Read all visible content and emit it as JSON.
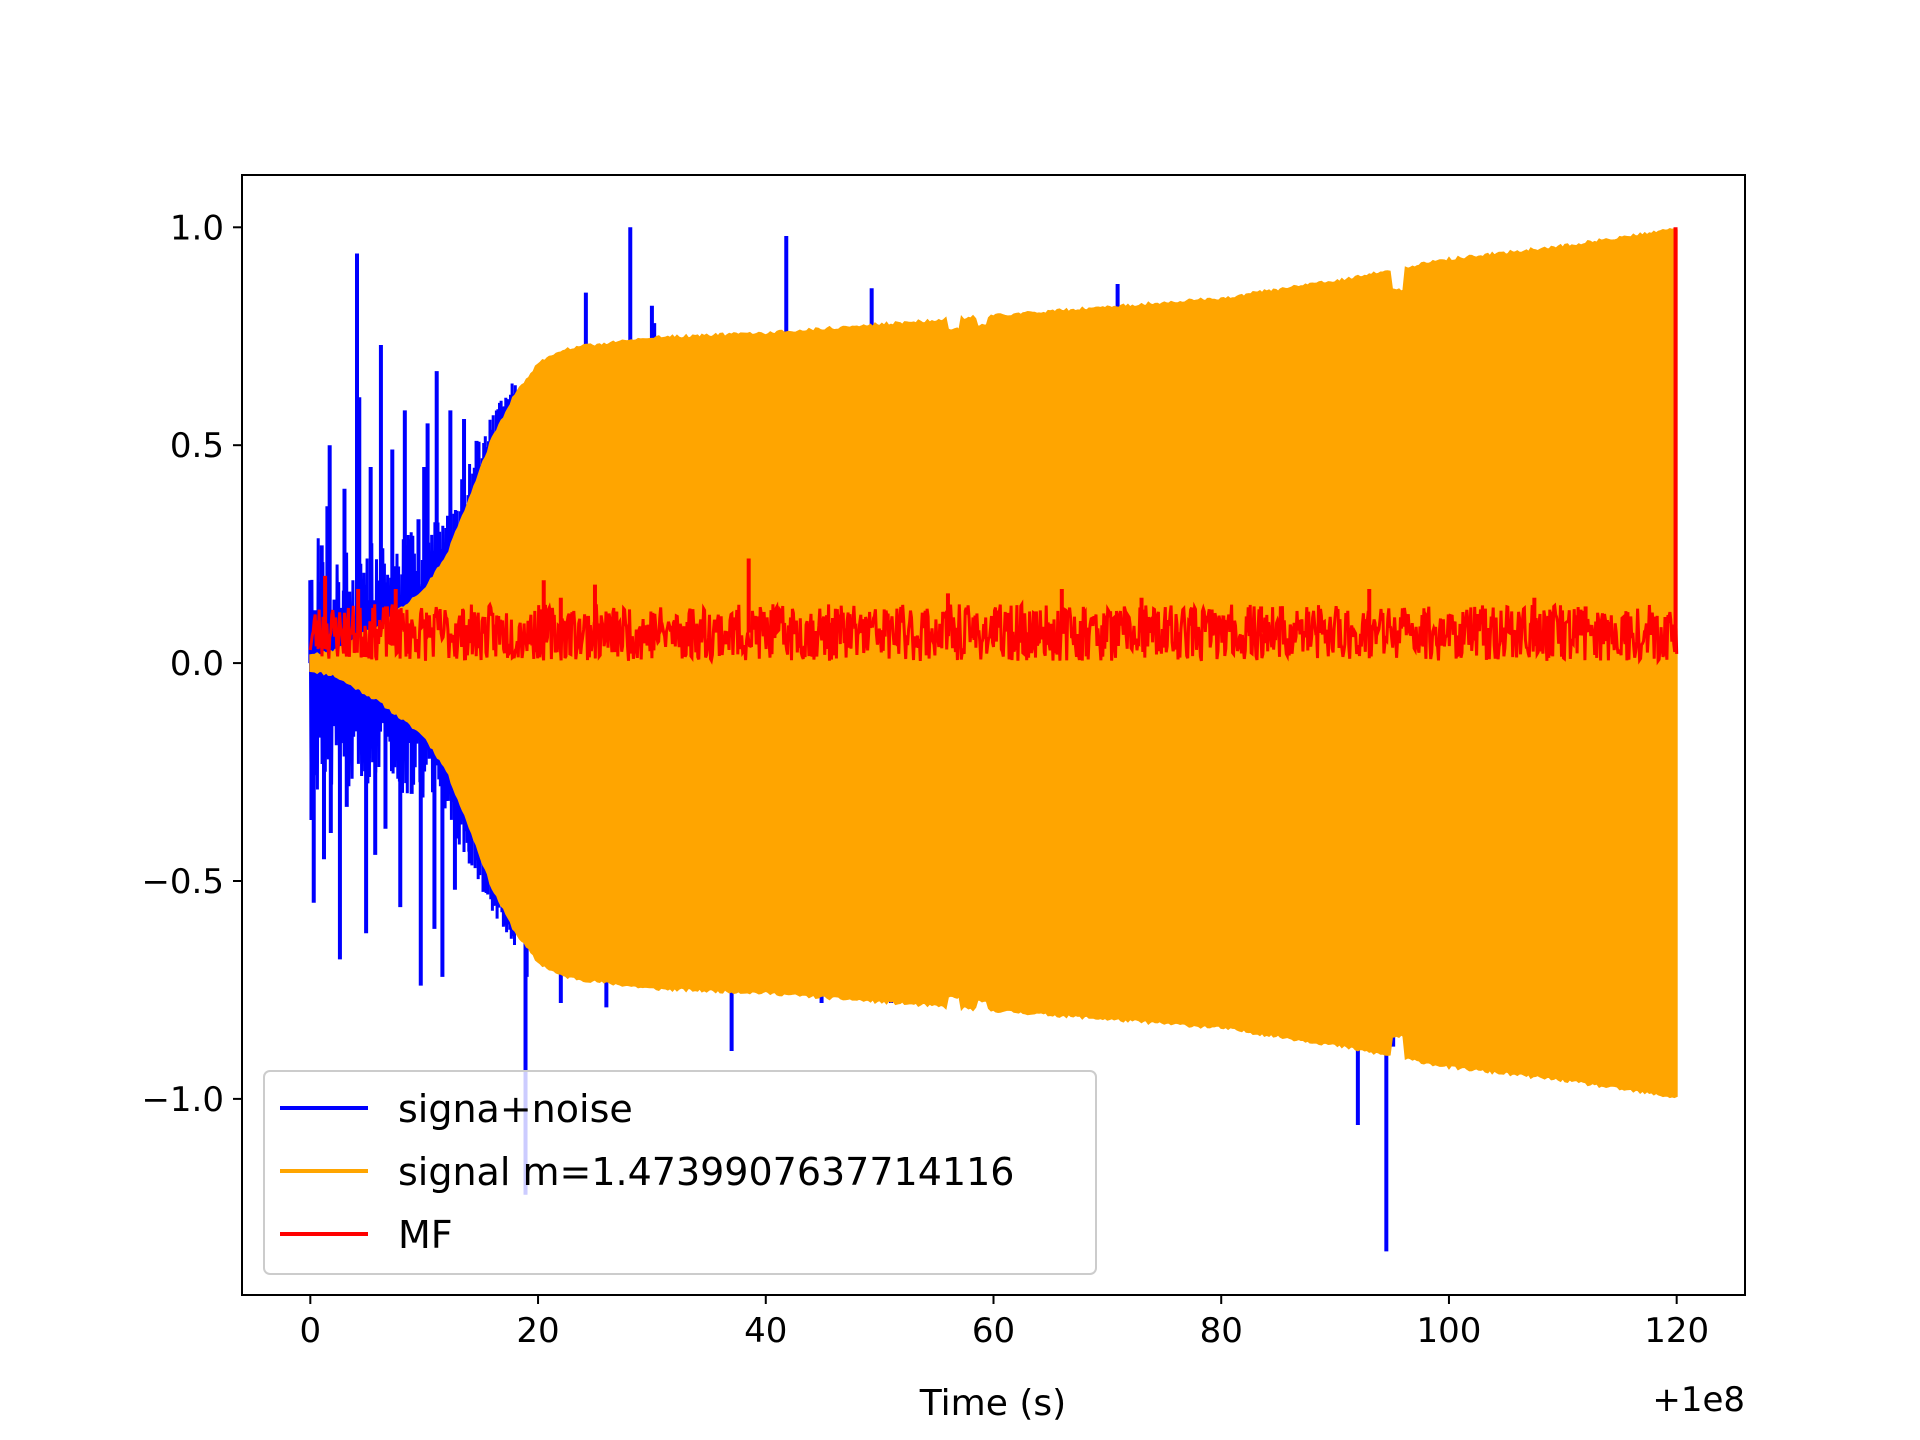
{
  "chart_data": {
    "type": "line",
    "title": "",
    "xlabel": "Time (s)",
    "ylabel": "",
    "x_offset_label": "+1e8",
    "xlim": [
      -6,
      126
    ],
    "ylim": [
      -1.45,
      1.12
    ],
    "x_ticks": [
      0,
      20,
      40,
      60,
      80,
      100,
      120
    ],
    "x_tick_labels": [
      "0",
      "20",
      "40",
      "60",
      "80",
      "100",
      "120"
    ],
    "y_ticks": [
      -1.0,
      -0.5,
      0.0,
      0.5,
      1.0
    ],
    "y_tick_labels": [
      "−1.0",
      "−0.5",
      "0.0",
      "0.5",
      "1.0"
    ],
    "grid": false,
    "legend_position": "lower-left",
    "series": [
      {
        "name": "signa+noise",
        "color": "#0000ff",
        "x_range": [
          0,
          120
        ],
        "spikes": [
          [
            0.0,
            0.19
          ],
          [
            0.1,
            -0.36
          ],
          [
            0.3,
            -0.55
          ],
          [
            1.0,
            0.27
          ],
          [
            1.2,
            -0.45
          ],
          [
            1.5,
            0.36
          ],
          [
            1.7,
            0.5
          ],
          [
            1.8,
            -0.39
          ],
          [
            2.6,
            -0.68
          ],
          [
            3.0,
            0.4
          ],
          [
            3.2,
            -0.33
          ],
          [
            4.1,
            0.94
          ],
          [
            4.3,
            0.61
          ],
          [
            4.9,
            -0.62
          ],
          [
            5.3,
            0.45
          ],
          [
            5.7,
            -0.44
          ],
          [
            6.2,
            0.73
          ],
          [
            6.6,
            -0.38
          ],
          [
            7.2,
            0.49
          ],
          [
            7.9,
            -0.56
          ],
          [
            8.3,
            0.58
          ],
          [
            8.9,
            -0.3
          ],
          [
            9.5,
            0.33
          ],
          [
            9.7,
            -0.74
          ],
          [
            10.0,
            0.45
          ],
          [
            10.3,
            0.55
          ],
          [
            10.9,
            -0.61
          ],
          [
            11.1,
            0.67
          ],
          [
            11.6,
            -0.72
          ],
          [
            12.3,
            0.58
          ],
          [
            12.7,
            -0.52
          ],
          [
            13.5,
            0.56
          ],
          [
            14.0,
            -0.46
          ],
          [
            14.6,
            0.51
          ],
          [
            16.0,
            0.49
          ],
          [
            18.9,
            -1.22
          ],
          [
            19.0,
            -0.72
          ],
          [
            20.0,
            -0.62
          ],
          [
            22.0,
            -0.78
          ],
          [
            24.2,
            0.85
          ],
          [
            26.0,
            -0.79
          ],
          [
            28.1,
            1.0
          ],
          [
            29.0,
            0.74
          ],
          [
            30.0,
            0.82
          ],
          [
            30.2,
            0.78
          ],
          [
            37.0,
            -0.89
          ],
          [
            41.8,
            0.98
          ],
          [
            44.9,
            -0.78
          ],
          [
            49.3,
            0.86
          ],
          [
            51.0,
            -0.78
          ],
          [
            70.9,
            0.87
          ],
          [
            92.0,
            -1.06
          ],
          [
            94.5,
            -1.35
          ],
          [
            95.1,
            -0.88
          ]
        ]
      },
      {
        "name": "signal m=1.4739907637714116",
        "color": "#ffa500",
        "x_range": [
          0,
          120
        ],
        "envelope": [
          [
            0,
            0.02
          ],
          [
            2,
            0.03
          ],
          [
            4,
            0.06
          ],
          [
            6,
            0.09
          ],
          [
            8,
            0.13
          ],
          [
            10,
            0.17
          ],
          [
            12,
            0.25
          ],
          [
            14,
            0.38
          ],
          [
            16,
            0.52
          ],
          [
            18,
            0.62
          ],
          [
            20,
            0.69
          ],
          [
            22,
            0.72
          ],
          [
            24,
            0.73
          ],
          [
            30,
            0.75
          ],
          [
            40,
            0.76
          ],
          [
            50,
            0.78
          ],
          [
            60,
            0.8
          ],
          [
            70,
            0.82
          ],
          [
            80,
            0.84
          ],
          [
            90,
            0.88
          ],
          [
            100,
            0.93
          ],
          [
            110,
            0.96
          ],
          [
            120,
            1.0
          ]
        ],
        "dips": [
          [
            56.5,
            0.77
          ],
          [
            59.0,
            0.78
          ],
          [
            95.5,
            0.86
          ]
        ]
      },
      {
        "name": "MF",
        "color": "#ff0000",
        "x_range": [
          0,
          120
        ],
        "baseline": 0.07,
        "band": [
          0.0,
          0.14
        ],
        "bursts": [
          [
            1.3,
            0.2
          ],
          [
            4.2,
            0.17
          ],
          [
            7.5,
            0.17
          ],
          [
            20.5,
            0.19
          ],
          [
            22.0,
            0.15
          ],
          [
            25.0,
            0.18
          ],
          [
            38.5,
            0.24
          ],
          [
            56.0,
            0.16
          ],
          [
            66.0,
            0.17
          ],
          [
            73.0,
            0.15
          ],
          [
            83.5,
            0.13
          ],
          [
            93.0,
            0.17
          ],
          [
            107.5,
            0.15
          ],
          [
            112.0,
            0.13
          ],
          [
            119.9,
            1.0
          ]
        ]
      }
    ]
  }
}
